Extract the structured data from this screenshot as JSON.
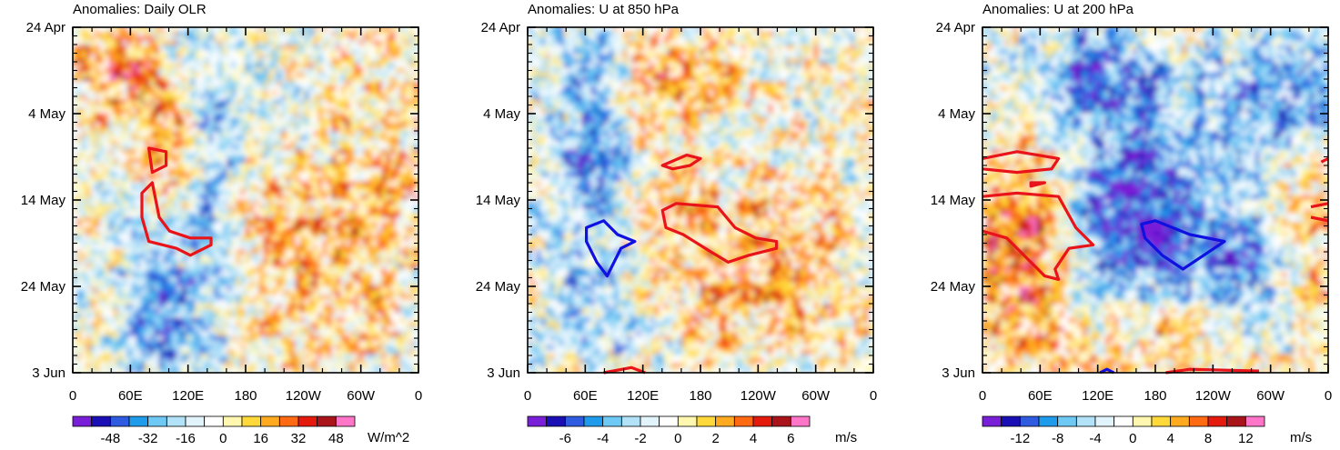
{
  "chart_data": [
    {
      "type": "heatmap",
      "title": "Anomalies: Daily OLR",
      "units": "W/m^2",
      "x_ticks": [
        "0",
        "60E",
        "120E",
        "180",
        "120W",
        "60W",
        "0"
      ],
      "y_ticks": [
        "24 Apr",
        "4 May",
        "14 May",
        "24 May",
        "3 Jun"
      ],
      "xlim": [
        0,
        360
      ],
      "y_dates": [
        "24 Apr",
        "3 Jun"
      ],
      "colorbar_labels": [
        "-48",
        "-32",
        "-16",
        "0",
        "16",
        "32",
        "48"
      ],
      "colorbar_levels": [
        -56,
        -48,
        -40,
        -32,
        -24,
        -16,
        -8,
        0,
        8,
        16,
        24,
        32,
        40,
        48,
        56
      ],
      "contours": [
        {
          "color": "red",
          "region": "60E-150E, 6-22 May"
        },
        {
          "color": "blue",
          "region": "none"
        }
      ]
    },
    {
      "type": "heatmap",
      "title": "Anomalies: U at 850 hPa",
      "units": "m/s",
      "x_ticks": [
        "0",
        "60E",
        "120E",
        "180",
        "120W",
        "60W",
        "0"
      ],
      "y_ticks": [
        "24 Apr",
        "4 May",
        "14 May",
        "24 May",
        "3 Jun"
      ],
      "xlim": [
        0,
        360
      ],
      "y_dates": [
        "24 Apr",
        "3 Jun"
      ],
      "colorbar_labels": [
        "-6",
        "-4",
        "-2",
        "0",
        "2",
        "4",
        "6"
      ],
      "colorbar_levels": [
        -7,
        -6,
        -5,
        -4,
        -3,
        -2,
        -1,
        0,
        1,
        2,
        3,
        4,
        5,
        6,
        7
      ],
      "contours": [
        {
          "color": "red",
          "region": "140E-170W, 9-12 May"
        },
        {
          "color": "red",
          "region": "140E-90W, 14-21 May"
        },
        {
          "color": "blue",
          "region": "60E-115E, 16-24 May"
        }
      ]
    },
    {
      "type": "heatmap",
      "title": "Anomalies: U at 200 hPa",
      "units": "m/s",
      "x_ticks": [
        "0",
        "60E",
        "120E",
        "180",
        "120W",
        "60W",
        "0"
      ],
      "y_ticks": [
        "24 Apr",
        "4 May",
        "14 May",
        "24 May",
        "3 Jun"
      ],
      "xlim": [
        0,
        360
      ],
      "y_dates": [
        "24 Apr",
        "3 Jun"
      ],
      "colorbar_labels": [
        "-12",
        "-8",
        "-4",
        "0",
        "4",
        "8",
        "12"
      ],
      "colorbar_levels": [
        -14,
        -12,
        -10,
        -8,
        -6,
        -4,
        -2,
        0,
        2,
        4,
        6,
        8,
        10,
        12,
        14
      ],
      "contours": [
        {
          "color": "red",
          "region": "0-80E, 9-13 May"
        },
        {
          "color": "red",
          "region": "0-130E, 14-23 May"
        },
        {
          "color": "blue",
          "region": "160E-110W, 17-22 May"
        }
      ]
    }
  ],
  "colors": {
    "scale": [
      "#7a1fd8",
      "#1a0fb5",
      "#2e5be0",
      "#1e9bea",
      "#6ec9f4",
      "#b2e2f8",
      "#e2f4fb",
      "#ffffff",
      "#fff7b0",
      "#ffd93a",
      "#ffaa1f",
      "#ff6a12",
      "#e41a0d",
      "#a8141a",
      "#ff76c8"
    ],
    "red_contour": "#e8141a",
    "blue_contour": "#1010e0"
  }
}
